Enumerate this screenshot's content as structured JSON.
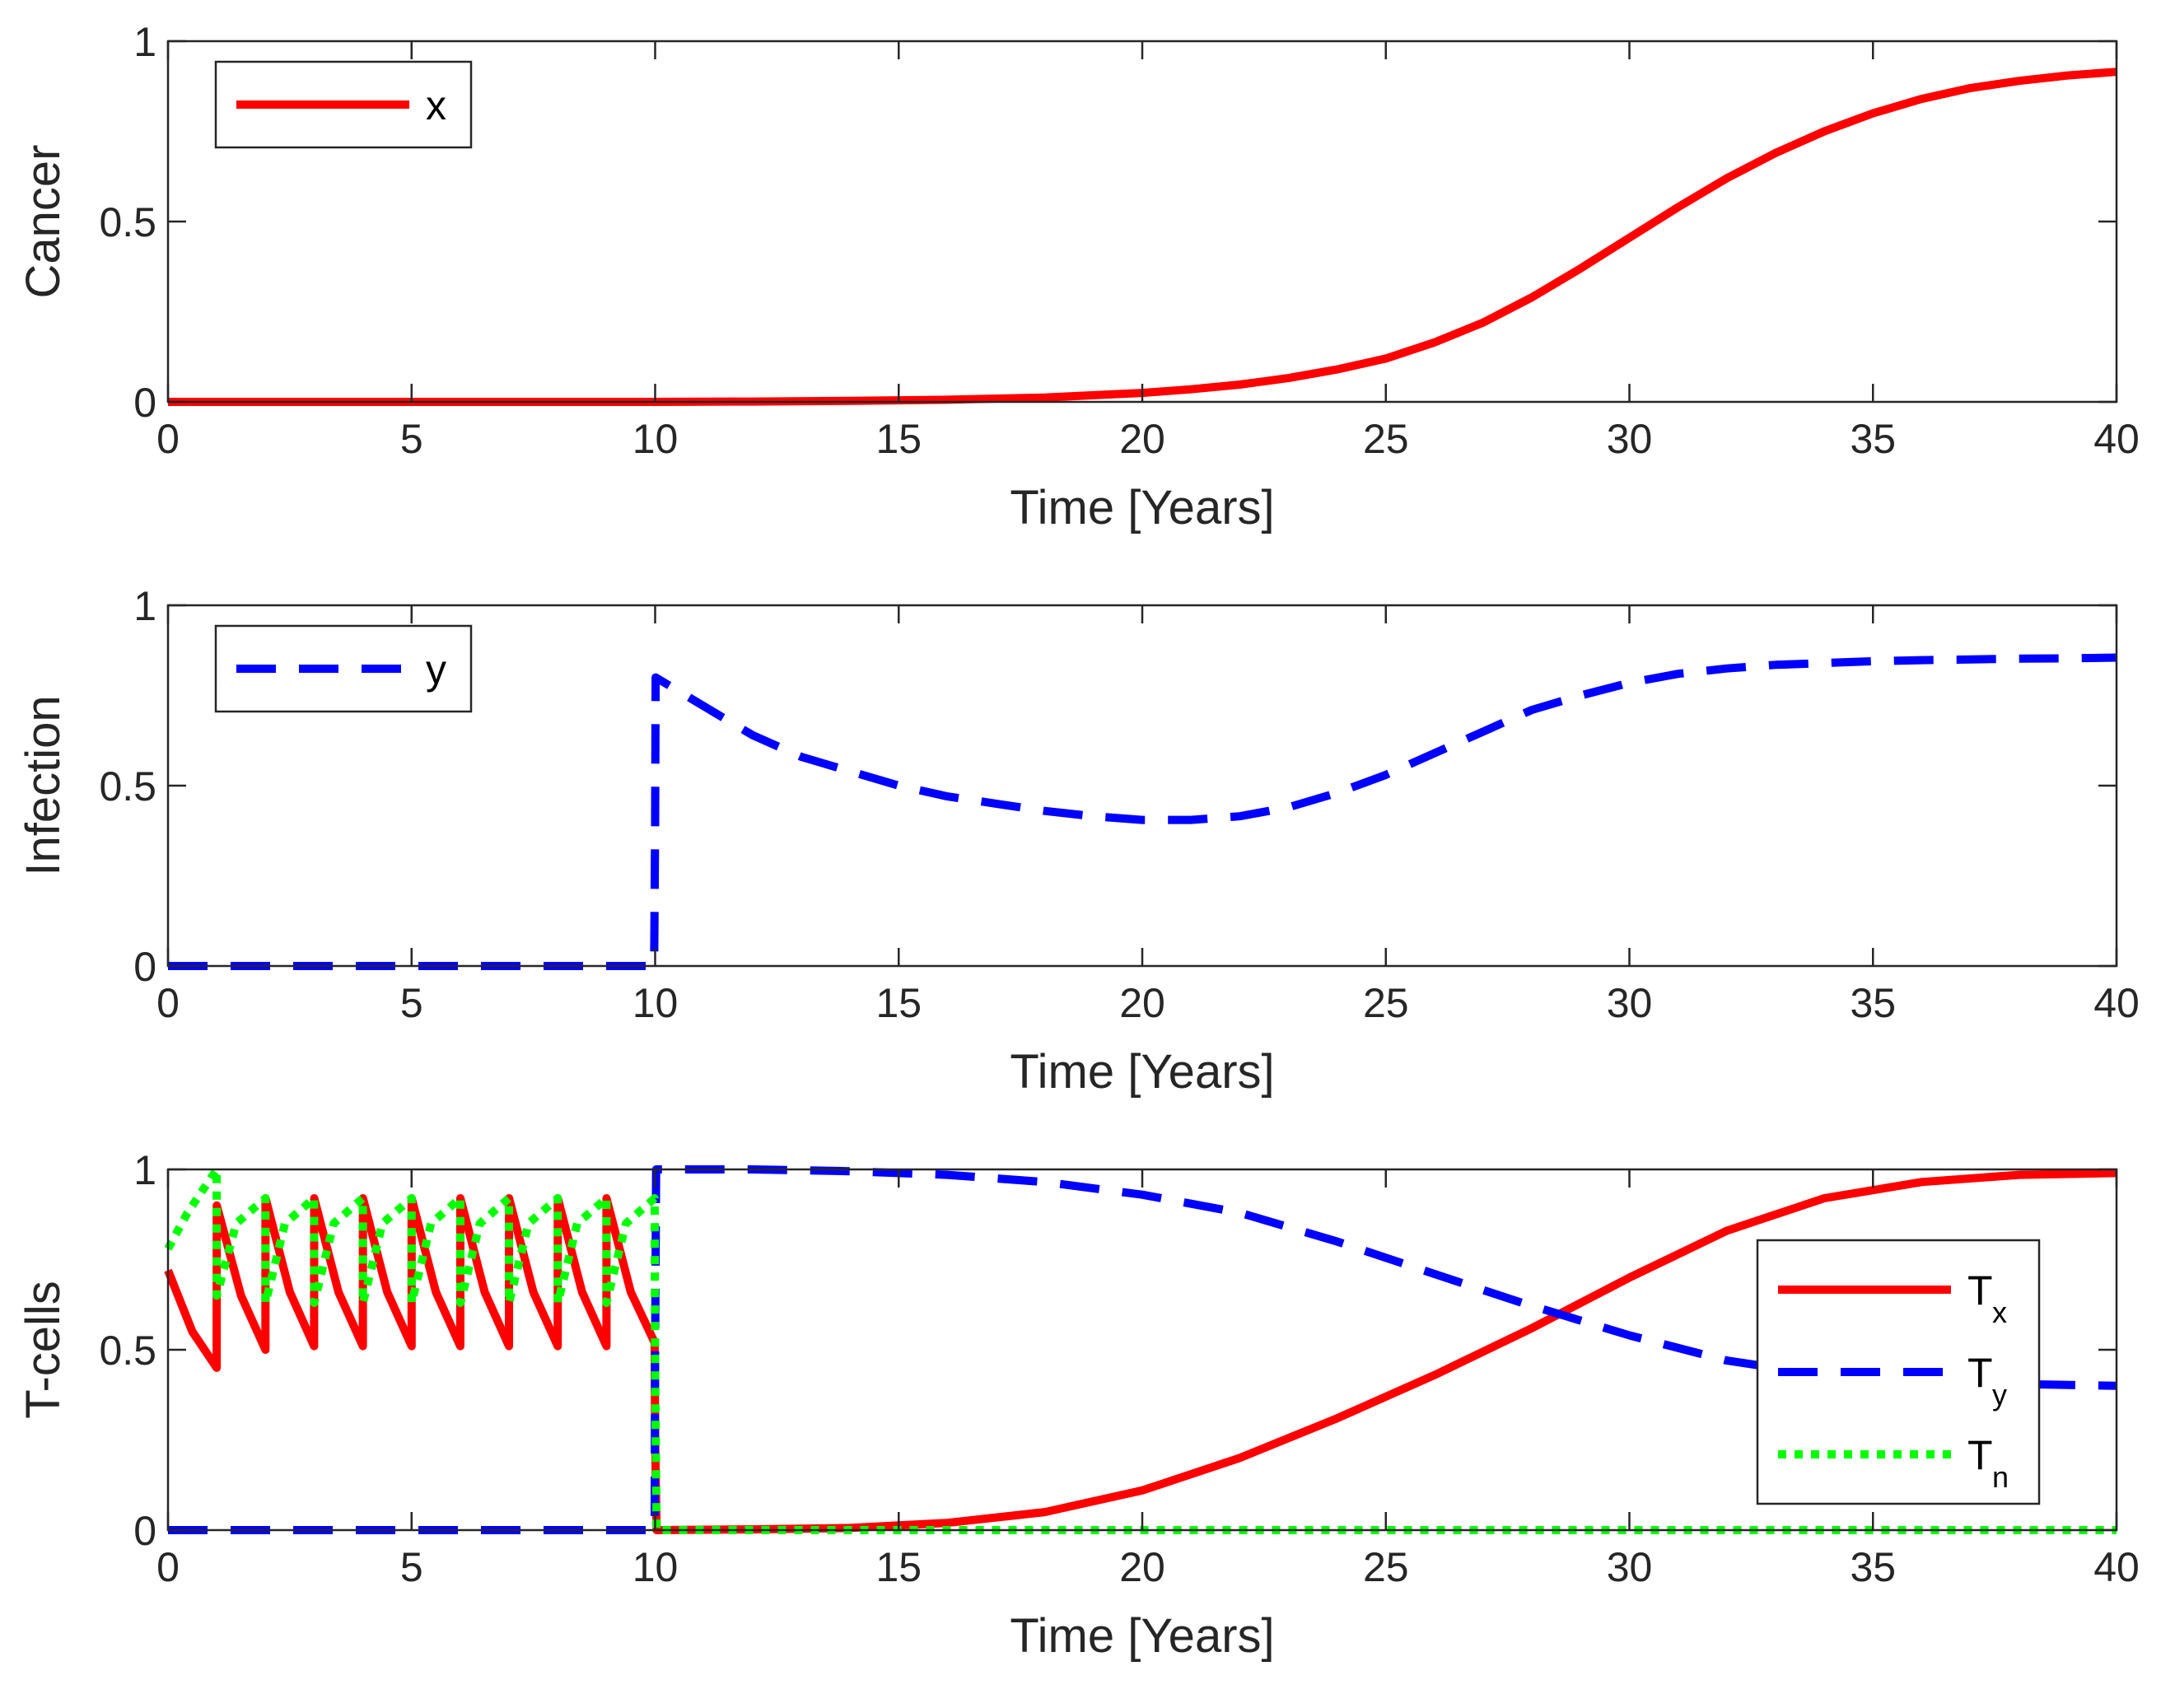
{
  "figure": {
    "background": "#ffffff",
    "axis_color": "#262626"
  },
  "chart_data": [
    {
      "type": "line",
      "ylabel": "Cancer",
      "xlabel": "Time [Years]",
      "xlim": [
        0,
        40
      ],
      "ylim": [
        0,
        1
      ],
      "xticks": [
        0,
        5,
        10,
        15,
        20,
        25,
        30,
        35,
        40
      ],
      "yticks": [
        0,
        0.5,
        1
      ],
      "xtick_labels": [
        "0",
        "5",
        "10",
        "15",
        "20",
        "25",
        "30",
        "35",
        "40"
      ],
      "ytick_labels": [
        "0",
        "0.5",
        "1"
      ],
      "legend": {
        "location": "top-left"
      },
      "series": [
        {
          "name": "x",
          "sub": "",
          "color": "#ff0000",
          "style": "solid",
          "x": [
            0,
            5,
            10,
            12,
            14,
            16,
            18,
            20,
            21,
            22,
            23,
            24,
            25,
            26,
            27,
            28,
            29,
            30,
            31,
            32,
            33,
            34,
            35,
            36,
            37,
            38,
            39,
            40
          ],
          "y": [
            0,
            0,
            0,
            0.001,
            0.003,
            0.006,
            0.012,
            0.025,
            0.035,
            0.048,
            0.066,
            0.09,
            0.12,
            0.165,
            0.22,
            0.29,
            0.37,
            0.455,
            0.54,
            0.62,
            0.69,
            0.75,
            0.8,
            0.84,
            0.87,
            0.89,
            0.905,
            0.915
          ]
        }
      ]
    },
    {
      "type": "line",
      "ylabel": "Infection",
      "xlabel": "Time [Years]",
      "xlim": [
        0,
        40
      ],
      "ylim": [
        0,
        1
      ],
      "xticks": [
        0,
        5,
        10,
        15,
        20,
        25,
        30,
        35,
        40
      ],
      "yticks": [
        0,
        0.5,
        1
      ],
      "xtick_labels": [
        "0",
        "5",
        "10",
        "15",
        "20",
        "25",
        "30",
        "35",
        "40"
      ],
      "ytick_labels": [
        "0",
        "0.5",
        "1"
      ],
      "legend": {
        "location": "top-left"
      },
      "series": [
        {
          "name": "y",
          "sub": "",
          "color": "#0000ff",
          "style": "dashed",
          "x": [
            0,
            9.98,
            10.0,
            10.01,
            11,
            12,
            13,
            14,
            15,
            16,
            17,
            18,
            19,
            20,
            21,
            22,
            23,
            24,
            25,
            26,
            27,
            28,
            29,
            30,
            31,
            32,
            33,
            34,
            35,
            36,
            37,
            38,
            39,
            40
          ],
          "y": [
            0,
            0,
            0.4,
            0.8,
            0.72,
            0.64,
            0.58,
            0.54,
            0.5,
            0.47,
            0.45,
            0.43,
            0.415,
            0.405,
            0.405,
            0.415,
            0.44,
            0.48,
            0.53,
            0.59,
            0.65,
            0.71,
            0.75,
            0.785,
            0.81,
            0.825,
            0.835,
            0.84,
            0.845,
            0.848,
            0.85,
            0.852,
            0.853,
            0.855
          ]
        }
      ]
    },
    {
      "type": "line",
      "ylabel": "T-cells",
      "xlabel": "Time [Years]",
      "xlim": [
        0,
        40
      ],
      "ylim": [
        0,
        1
      ],
      "xticks": [
        0,
        5,
        10,
        15,
        20,
        25,
        30,
        35,
        40
      ],
      "yticks": [
        0,
        0.5,
        1
      ],
      "xtick_labels": [
        "0",
        "5",
        "10",
        "15",
        "20",
        "25",
        "30",
        "35",
        "40"
      ],
      "ytick_labels": [
        "0",
        "0.5",
        "1"
      ],
      "legend": {
        "location": "right"
      },
      "series": [
        {
          "name": "T",
          "sub": "x",
          "color": "#ff0000",
          "style": "solid",
          "x": [
            0,
            0.5,
            1,
            1.001,
            1.5,
            2,
            2.001,
            2.5,
            3,
            3.001,
            3.5,
            4,
            4.001,
            4.5,
            5,
            5.001,
            5.5,
            6,
            6.001,
            6.5,
            7,
            7.001,
            7.5,
            8,
            8.001,
            8.5,
            9,
            9.001,
            9.5,
            9.99,
            10.0,
            10.03,
            12,
            14,
            16,
            18,
            20,
            22,
            24,
            26,
            28,
            30,
            32,
            34,
            36,
            38,
            40
          ],
          "y": [
            0.72,
            0.55,
            0.45,
            0.9,
            0.65,
            0.5,
            0.92,
            0.66,
            0.51,
            0.92,
            0.66,
            0.51,
            0.92,
            0.66,
            0.51,
            0.92,
            0.66,
            0.51,
            0.92,
            0.66,
            0.51,
            0.92,
            0.66,
            0.51,
            0.92,
            0.66,
            0.51,
            0.92,
            0.66,
            0.52,
            0.25,
            0,
            0.002,
            0.006,
            0.02,
            0.05,
            0.11,
            0.2,
            0.31,
            0.43,
            0.56,
            0.7,
            0.83,
            0.92,
            0.965,
            0.985,
            0.99
          ]
        },
        {
          "name": "T",
          "sub": "y",
          "color": "#0000ff",
          "style": "dashed",
          "x": [
            0,
            9.99,
            10.0,
            10.02,
            12,
            14,
            16,
            18,
            20,
            22,
            24,
            26,
            27.8,
            30,
            32,
            34,
            36,
            38,
            40
          ],
          "y": [
            0,
            0,
            0.5,
            1.0,
            1.0,
            0.995,
            0.985,
            0.965,
            0.93,
            0.88,
            0.8,
            0.71,
            0.63,
            0.54,
            0.47,
            0.43,
            0.41,
            0.405,
            0.4
          ]
        },
        {
          "name": "T",
          "sub": "n",
          "color": "#00ff00",
          "style": "dotted",
          "x": [
            0,
            0.4,
            1,
            1.001,
            1.4,
            2,
            2.001,
            2.4,
            3,
            3.001,
            3.4,
            4,
            4.001,
            4.4,
            5,
            5.001,
            5.4,
            6,
            6.001,
            6.4,
            7,
            7.001,
            7.4,
            8,
            8.001,
            8.4,
            9,
            9.001,
            9.4,
            9.99,
            10.0,
            10.03,
            40
          ],
          "y": [
            0.78,
            0.88,
            1.0,
            0.65,
            0.85,
            0.92,
            0.63,
            0.85,
            0.92,
            0.63,
            0.85,
            0.92,
            0.63,
            0.85,
            0.92,
            0.63,
            0.85,
            0.92,
            0.63,
            0.85,
            0.92,
            0.63,
            0.85,
            0.92,
            0.63,
            0.85,
            0.92,
            0.63,
            0.85,
            0.92,
            0.45,
            0,
            0
          ]
        }
      ]
    }
  ]
}
